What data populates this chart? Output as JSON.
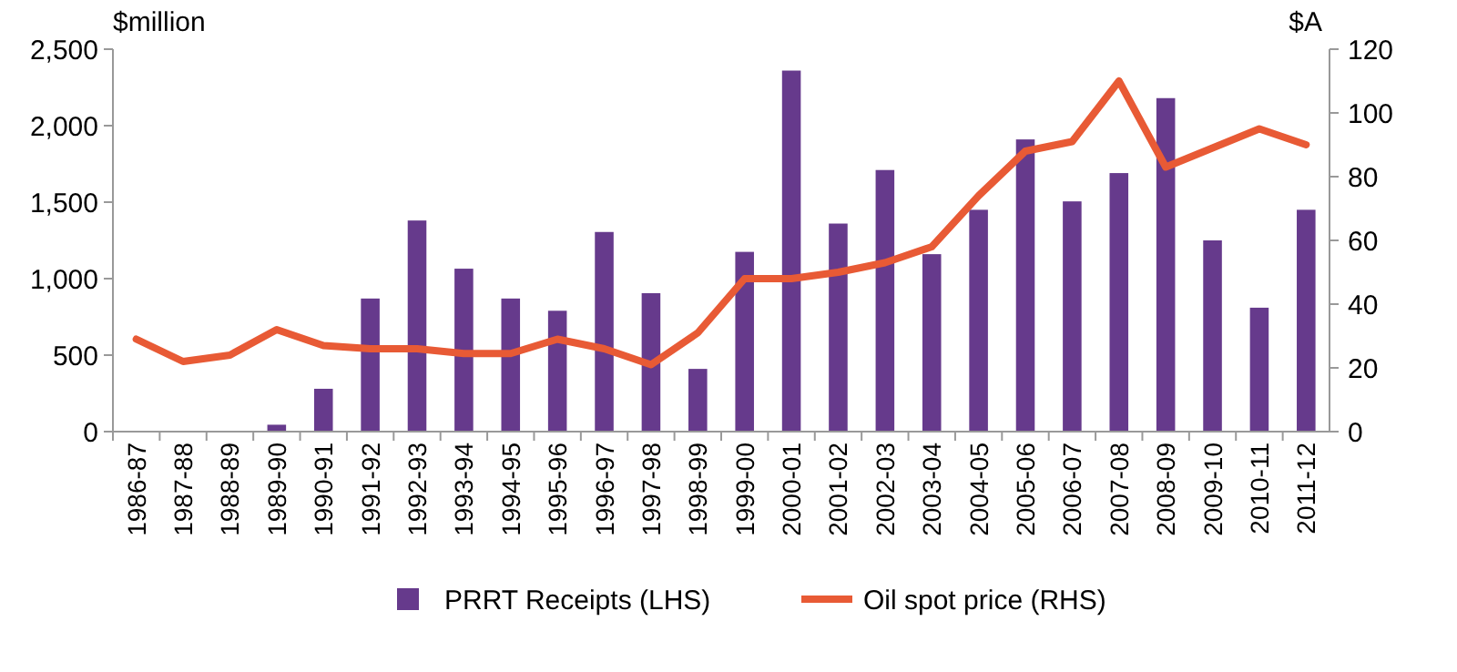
{
  "chart_data": {
    "type": "bar",
    "categories": [
      "1986-87",
      "1987-88",
      "1988-89",
      "1989-90",
      "1990-91",
      "1991-92",
      "1992-93",
      "1993-94",
      "1994-95",
      "1995-96",
      "1996-97",
      "1997-98",
      "1998-99",
      "1999-00",
      "2000-01",
      "2001-02",
      "2002-03",
      "2003-04",
      "2004-05",
      "2005-06",
      "2006-07",
      "2007-08",
      "2008-09",
      "2009-10",
      "2010-11",
      "2011-12"
    ],
    "ylabel": "$million",
    "y2label": "$A",
    "ylim": [
      0,
      2500
    ],
    "yticks": [
      {
        "value": 0,
        "label": "0"
      },
      {
        "value": 500,
        "label": "500"
      },
      {
        "value": 1000,
        "label": "1,000"
      },
      {
        "value": 1500,
        "label": "1,500"
      },
      {
        "value": 2000,
        "label": "2,000"
      },
      {
        "value": 2500,
        "label": "2,500"
      }
    ],
    "y2lim": [
      0,
      120
    ],
    "y2ticks": [
      0,
      20,
      40,
      60,
      80,
      100,
      120
    ],
    "legend": "bottom",
    "grid": false,
    "series": [
      {
        "name": "PRRT Receipts (LHS)",
        "color": "#663a8c",
        "values": [
          0,
          0,
          0,
          45,
          280,
          870,
          1380,
          1065,
          870,
          790,
          1305,
          905,
          410,
          1175,
          2360,
          1360,
          1710,
          1160,
          1450,
          1910,
          1505,
          1690,
          2180,
          1250,
          810,
          1450
        ]
      },
      {
        "name": "Oil spot price (RHS)",
        "type": "line",
        "axis": "y2",
        "color": "#e85a35",
        "values": [
          29,
          22,
          24,
          32,
          27,
          26,
          26,
          24.5,
          24.5,
          29,
          26,
          21,
          31,
          48,
          48,
          50,
          53,
          58,
          74,
          88,
          91,
          110,
          83,
          89,
          95,
          90
        ]
      }
    ]
  }
}
